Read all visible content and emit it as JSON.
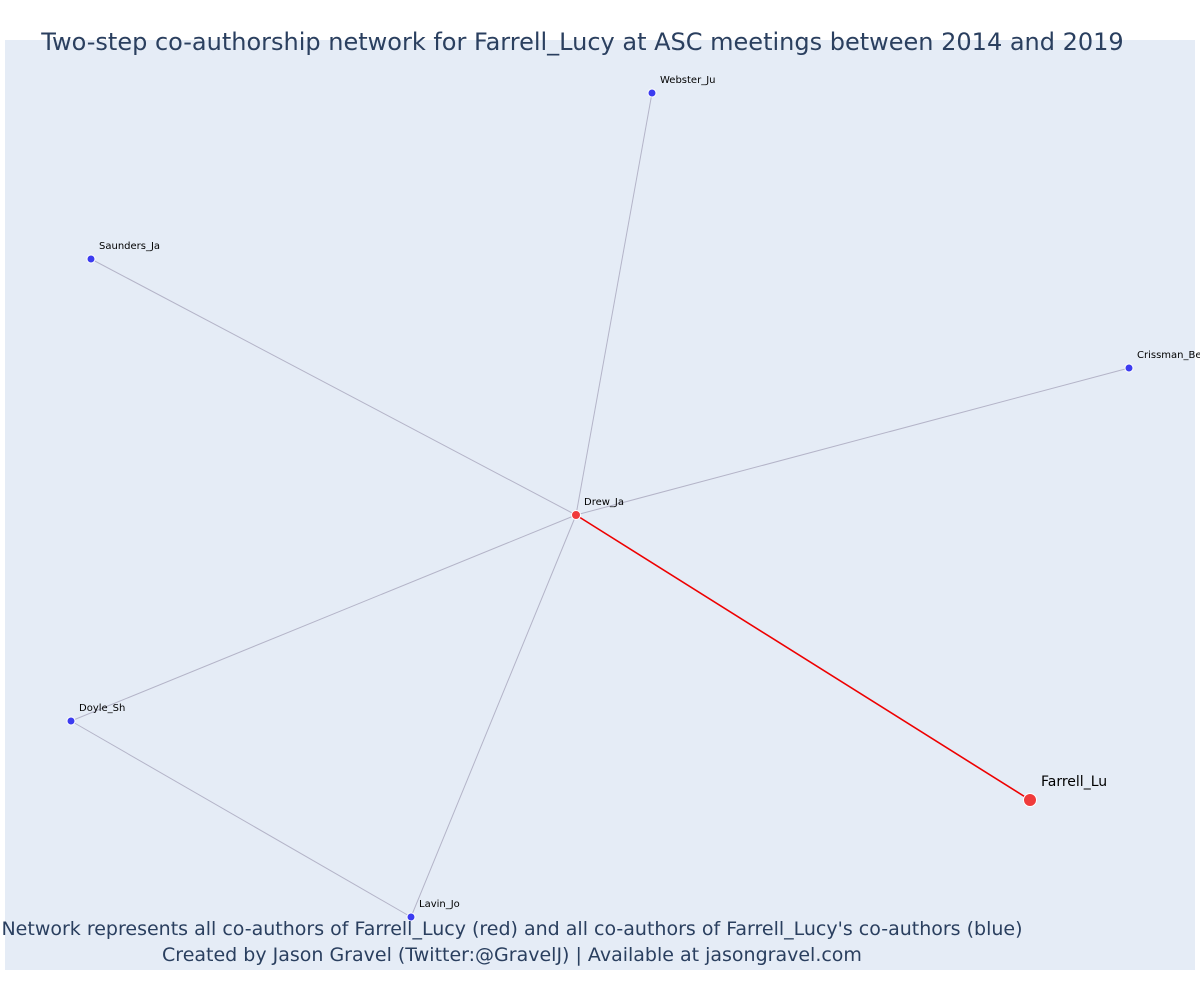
{
  "title": "Two-step co-authorship network for Farrell_Lucy at ASC meetings between 2014 and 2019",
  "caption": {
    "line1": "Network represents all co-authors of Farrell_Lucy (red) and all co-authors of Farrell_Lucy's co-authors (blue)",
    "line2": "Created by Jason Gravel (Twitter:@GravelJ) | Available at jasongravel.com"
  },
  "colors": {
    "background": "#e5ecf6",
    "focal": "#f03b3b",
    "first_degree": "#f03b3b",
    "second_degree": "#3c3cf0",
    "edge_default": "#b4b4c8",
    "edge_focal": "#ee0000",
    "text": "#2a3f5f"
  },
  "nodes": [
    {
      "id": "Farrell_Lu",
      "label": "Farrell_Lu",
      "group": "focal"
    },
    {
      "id": "Drew_Ja",
      "label": "Drew_Ja",
      "group": "first_degree"
    },
    {
      "id": "Webster_Ju",
      "label": "Webster_Ju",
      "group": "second_degree"
    },
    {
      "id": "Saunders_Ja",
      "label": "Saunders_Ja",
      "group": "second_degree"
    },
    {
      "id": "Crissman_Be",
      "label": "Crissman_Be",
      "group": "second_degree"
    },
    {
      "id": "Doyle_Sh",
      "label": "Doyle_Sh",
      "group": "second_degree"
    },
    {
      "id": "Lavin_Jo",
      "label": "Lavin_Jo",
      "group": "second_degree"
    }
  ],
  "edges": [
    {
      "source": "Drew_Ja",
      "target": "Farrell_Lu",
      "highlight": true
    },
    {
      "source": "Drew_Ja",
      "target": "Webster_Ju",
      "highlight": false
    },
    {
      "source": "Drew_Ja",
      "target": "Saunders_Ja",
      "highlight": false
    },
    {
      "source": "Drew_Ja",
      "target": "Crissman_Be",
      "highlight": false
    },
    {
      "source": "Drew_Ja",
      "target": "Doyle_Sh",
      "highlight": false
    },
    {
      "source": "Drew_Ja",
      "target": "Lavin_Jo",
      "highlight": false
    },
    {
      "source": "Doyle_Sh",
      "target": "Lavin_Jo",
      "highlight": false
    }
  ]
}
